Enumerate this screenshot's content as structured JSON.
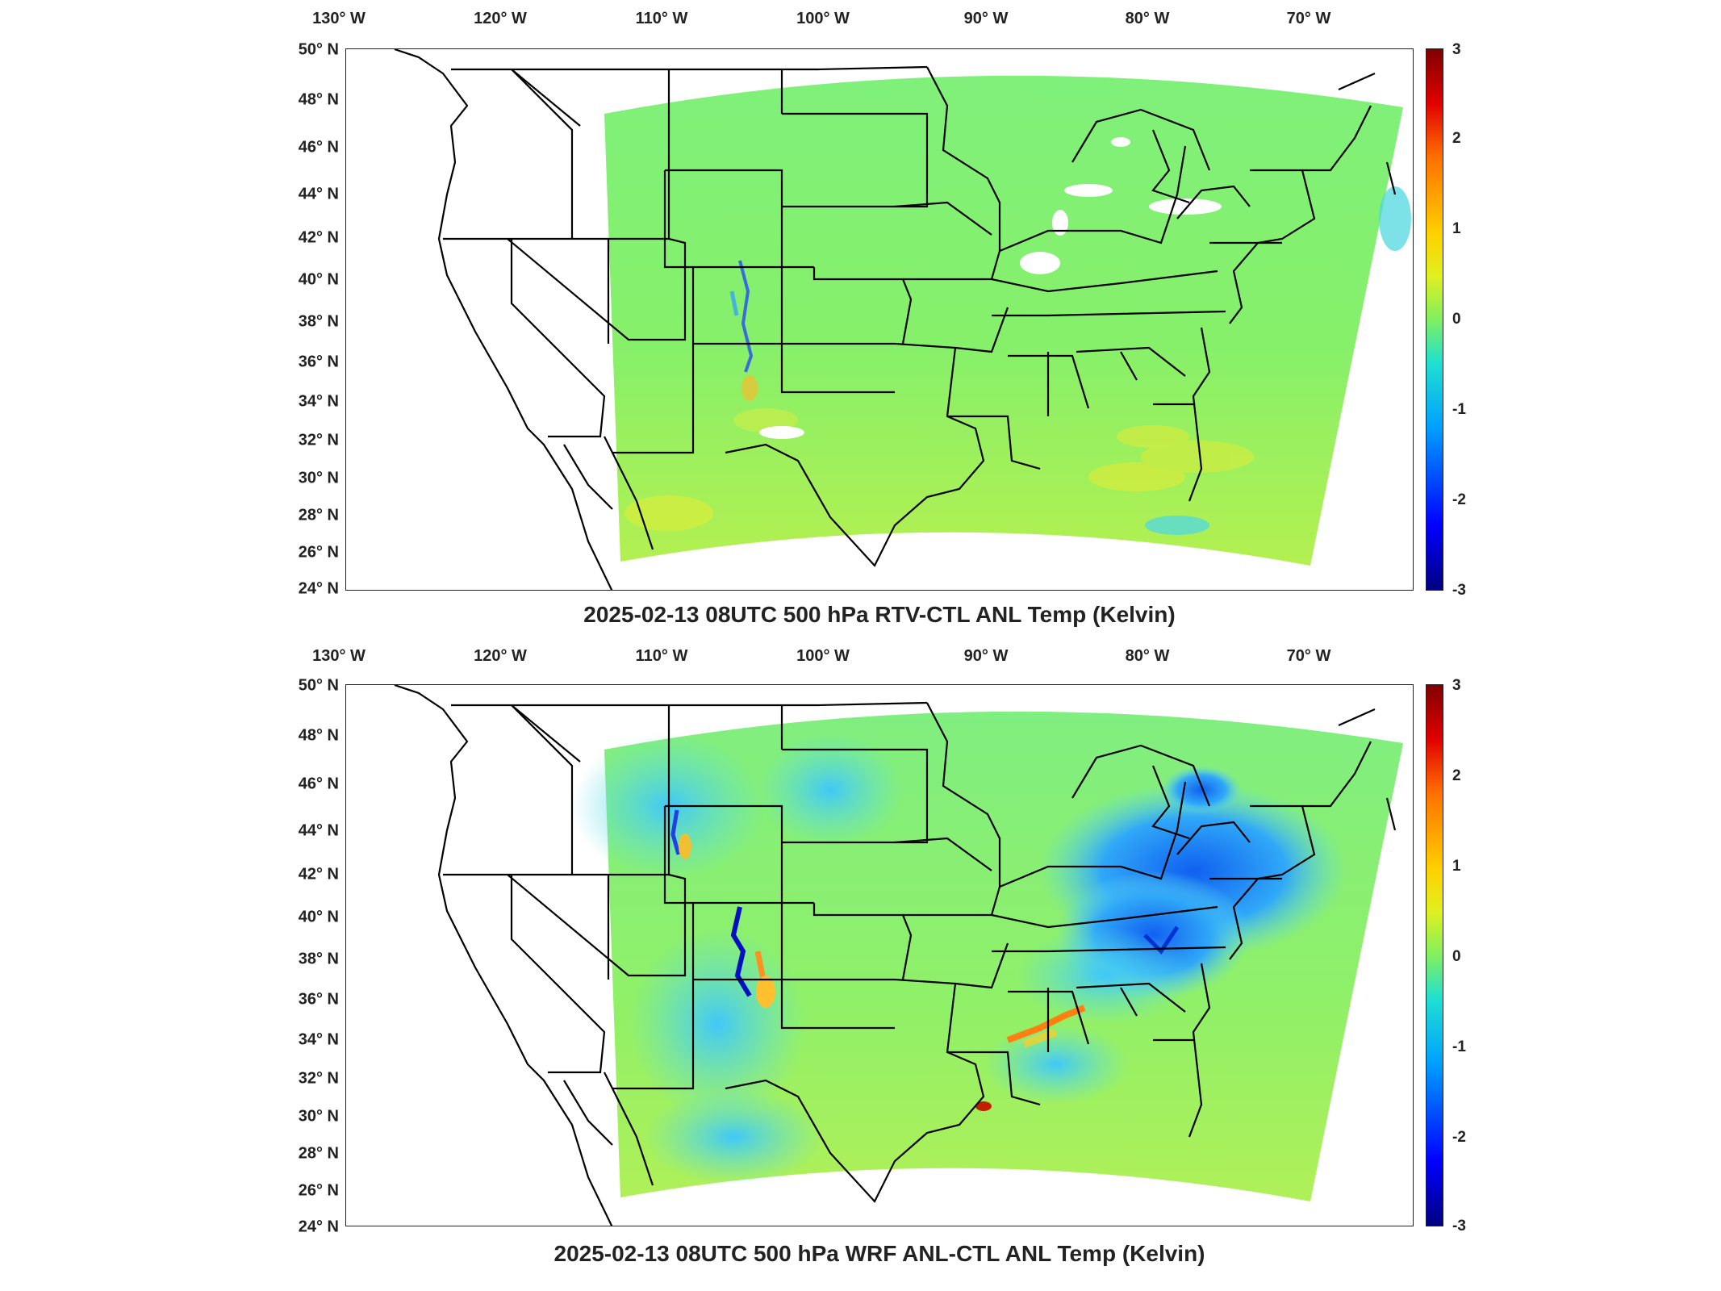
{
  "colors": {
    "base_field": "#8af06a",
    "cool_field": "#3fd0f0",
    "deep_blue": "#0010c0",
    "warm": "#f0e040",
    "hot": "#ff7000",
    "land": "#ffffff",
    "boundary": "#000000"
  },
  "panels": [
    {
      "title": "2025-02-13 08UTC 500 hPa RTV-CTL ANL Temp (Kelvin)",
      "lon_labels": [
        "130° W",
        "120° W",
        "110° W",
        "100° W",
        "90° W",
        "80° W",
        "70° W"
      ],
      "lat_labels": [
        "50° N",
        "48° N",
        "46° N",
        "44° N",
        "42° N",
        "40° N",
        "38° N",
        "36° N",
        "34° N",
        "32° N",
        "30° N",
        "28° N",
        "26° N",
        "24° N"
      ],
      "colorbar": {
        "ticks": [
          "3",
          "2",
          "1",
          "0",
          "-1",
          "-2",
          "-3"
        ],
        "range": [
          -3,
          3
        ]
      }
    },
    {
      "title": "2025-02-13 08UTC 500 hPa WRF ANL-CTL ANL Temp (Kelvin)",
      "lon_labels": [
        "130° W",
        "120° W",
        "110° W",
        "100° W",
        "90° W",
        "80° W",
        "70° W"
      ],
      "lat_labels": [
        "50° N",
        "48° N",
        "46° N",
        "44° N",
        "42° N",
        "40° N",
        "38° N",
        "36° N",
        "34° N",
        "32° N",
        "30° N",
        "28° N",
        "26° N",
        "24° N"
      ],
      "colorbar": {
        "ticks": [
          "3",
          "2",
          "1",
          "0",
          "-1",
          "-2",
          "-3"
        ],
        "range": [
          -3,
          3
        ]
      }
    }
  ]
}
